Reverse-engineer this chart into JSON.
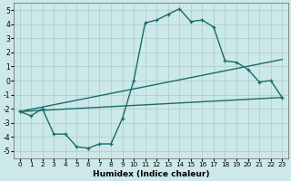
{
  "xlabel": "Humidex (Indice chaleur)",
  "ylabel": "",
  "xlim": [
    -0.5,
    23.5
  ],
  "ylim": [
    -5.5,
    5.5
  ],
  "xticks": [
    0,
    1,
    2,
    3,
    4,
    5,
    6,
    7,
    8,
    9,
    10,
    11,
    12,
    13,
    14,
    15,
    16,
    17,
    18,
    19,
    20,
    21,
    22,
    23
  ],
  "yticks": [
    -5,
    -4,
    -3,
    -2,
    -1,
    0,
    1,
    2,
    3,
    4,
    5
  ],
  "bg_color": "#cce8e8",
  "line_color": "#1a6b6b",
  "grid_color": "#aacccc",
  "line1_x": [
    0,
    1,
    2,
    3,
    4,
    5,
    6,
    7,
    8,
    9,
    10,
    11,
    12,
    13,
    14,
    15,
    16,
    17,
    18,
    19,
    20,
    21,
    22,
    23
  ],
  "line1_y": [
    -2.2,
    -2.5,
    -2.0,
    -3.8,
    -3.8,
    -4.7,
    -4.8,
    -4.5,
    -4.5,
    -2.7,
    0.0,
    4.1,
    4.3,
    4.7,
    5.1,
    4.2,
    4.3,
    3.8,
    1.4,
    1.3,
    0.8,
    -0.1,
    -0.0,
    -1.2
  ],
  "line2_x": [
    0,
    23
  ],
  "line2_y": [
    -2.2,
    1.5
  ],
  "line3_x": [
    0,
    23
  ],
  "line3_y": [
    -2.2,
    -1.2
  ],
  "linewidth": 1.0,
  "marker_size": 3.5
}
